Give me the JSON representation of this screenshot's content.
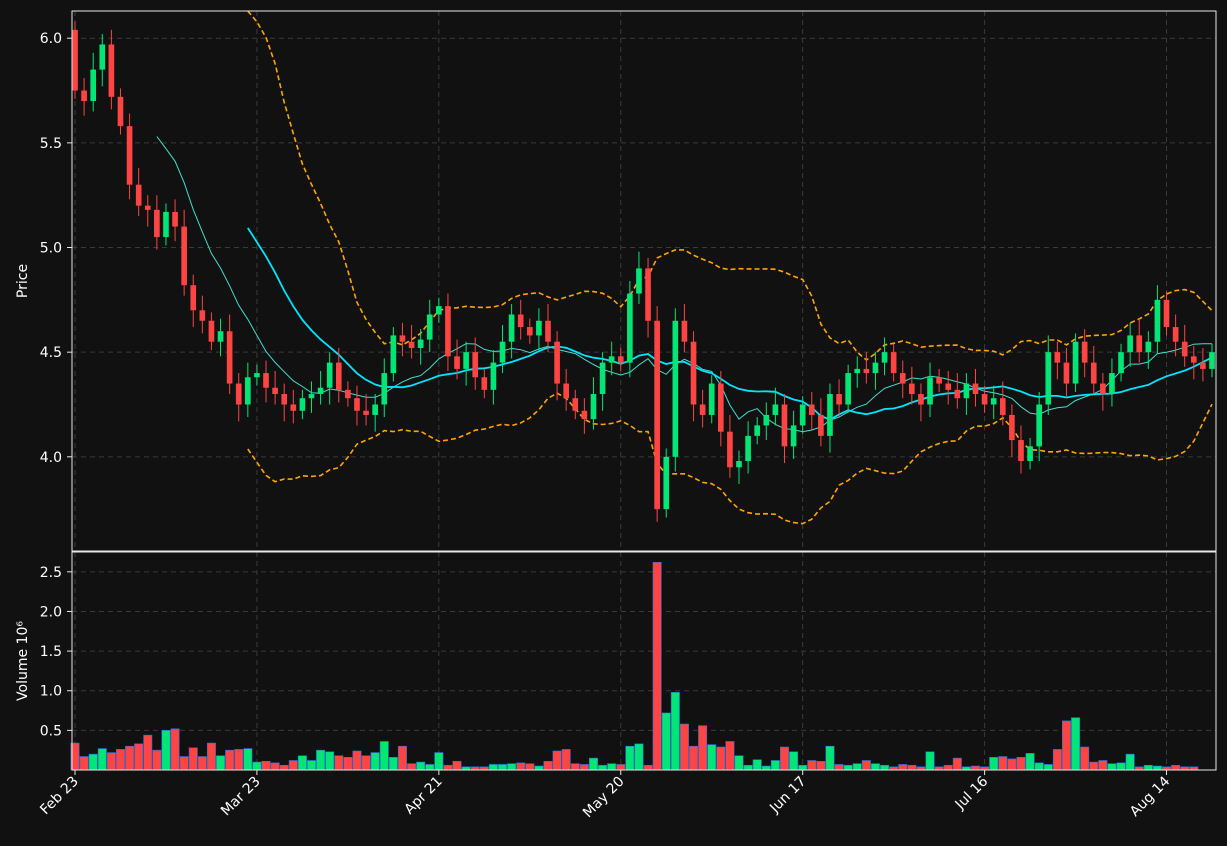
{
  "chart_data": [
    {
      "type": "candlestick",
      "panel": "price",
      "ylabel": "Price",
      "ylim": [
        3.55,
        6.13
      ],
      "yticks": [
        4.0,
        4.5,
        5.0,
        5.5,
        6.0
      ],
      "ytick_labels": [
        "4.0",
        "4.5",
        "5.0",
        "5.5",
        "6.0"
      ],
      "x_tick_labels": [
        "Feb 23",
        "Mar 23",
        "Apr 21",
        "May 20",
        "Jun 17",
        "Jul 16",
        "Aug 14"
      ],
      "x_tick_indices": [
        0,
        20,
        40,
        60,
        80,
        100,
        120
      ],
      "grid": true,
      "close": [
        5.75,
        5.7,
        5.85,
        5.97,
        5.72,
        5.58,
        5.3,
        5.2,
        5.18,
        5.05,
        5.17,
        5.1,
        4.82,
        4.7,
        4.65,
        4.55,
        4.6,
        4.35,
        4.25,
        4.38,
        4.4,
        4.33,
        4.3,
        4.25,
        4.22,
        4.28,
        4.3,
        4.33,
        4.45,
        4.32,
        4.28,
        4.22,
        4.2,
        4.25,
        4.4,
        4.58,
        4.55,
        4.52,
        4.56,
        4.68,
        4.72,
        4.48,
        4.42,
        4.5,
        4.38,
        4.32,
        4.45,
        4.55,
        4.68,
        4.62,
        4.58,
        4.65,
        4.55,
        4.35,
        4.28,
        4.22,
        4.18,
        4.3,
        4.45,
        4.48,
        4.45,
        4.78,
        4.9,
        4.65,
        3.75,
        4.0,
        4.65,
        4.55,
        4.25,
        4.2,
        4.35,
        4.12,
        3.95,
        3.98,
        4.1,
        4.15,
        4.2,
        4.25,
        4.05,
        4.15,
        4.25,
        4.2,
        4.1,
        4.3,
        4.25,
        4.4,
        4.42,
        4.4,
        4.45,
        4.5,
        4.4,
        4.35,
        4.3,
        4.25,
        4.38,
        4.35,
        4.32,
        4.28,
        4.35,
        4.3,
        4.25,
        4.28,
        4.2,
        4.08,
        3.98,
        4.05,
        4.25,
        4.5,
        4.45,
        4.35,
        4.55,
        4.45,
        4.35,
        4.3,
        4.4,
        4.5,
        4.58,
        4.5,
        4.55,
        4.75,
        4.62,
        4.55,
        4.48,
        4.45,
        4.42,
        4.5
      ],
      "series": [
        {
          "name": "",
          "kind": "ma_fast",
          "color": "#40e0d0",
          "start": 9
        },
        {
          "name": "",
          "kind": "ma_slow",
          "color": "#00e5ff",
          "start": 19
        },
        {
          "name": "",
          "kind": "bollinger",
          "color": "#ffa500",
          "start": 19
        }
      ],
      "colors": {
        "up": "#00e676",
        "down": "#ff4444"
      }
    },
    {
      "type": "bar",
      "panel": "volume",
      "ylabel": "Volume",
      "ylabel_suffix": "10⁶",
      "ylim": [
        0,
        2.75
      ],
      "yticks": [
        0.5,
        1.0,
        1.5,
        2.0,
        2.5
      ],
      "ytick_labels": [
        "0.5",
        "1.0",
        "1.5",
        "2.0",
        "2.5"
      ],
      "grid": true,
      "values": [
        0.34,
        0.17,
        0.2,
        0.27,
        0.22,
        0.26,
        0.3,
        0.33,
        0.44,
        0.25,
        0.5,
        0.52,
        0.17,
        0.28,
        0.17,
        0.34,
        0.18,
        0.25,
        0.26,
        0.27,
        0.1,
        0.11,
        0.09,
        0.06,
        0.12,
        0.18,
        0.12,
        0.25,
        0.23,
        0.18,
        0.16,
        0.24,
        0.18,
        0.22,
        0.36,
        0.16,
        0.3,
        0.08,
        0.1,
        0.07,
        0.22,
        0.06,
        0.11,
        0.04,
        0.04,
        0.04,
        0.07,
        0.07,
        0.08,
        0.09,
        0.08,
        0.05,
        0.11,
        0.24,
        0.26,
        0.08,
        0.07,
        0.15,
        0.06,
        0.08,
        0.07,
        0.3,
        0.33,
        0.06,
        2.62,
        0.72,
        0.98,
        0.58,
        0.3,
        0.56,
        0.32,
        0.29,
        0.36,
        0.18,
        0.06,
        0.13,
        0.05,
        0.12,
        0.29,
        0.23,
        0.06,
        0.12,
        0.11,
        0.3,
        0.07,
        0.06,
        0.08,
        0.12,
        0.08,
        0.06,
        0.04,
        0.07,
        0.06,
        0.04,
        0.23,
        0.04,
        0.06,
        0.15,
        0.04,
        0.05,
        0.04,
        0.16,
        0.17,
        0.14,
        0.16,
        0.21,
        0.09,
        0.07,
        0.26,
        0.62,
        0.66,
        0.29,
        0.1,
        0.12,
        0.08,
        0.09,
        0.2,
        0.04,
        0.06,
        0.05,
        0.04,
        0.06,
        0.04,
        0.04
      ]
    }
  ]
}
